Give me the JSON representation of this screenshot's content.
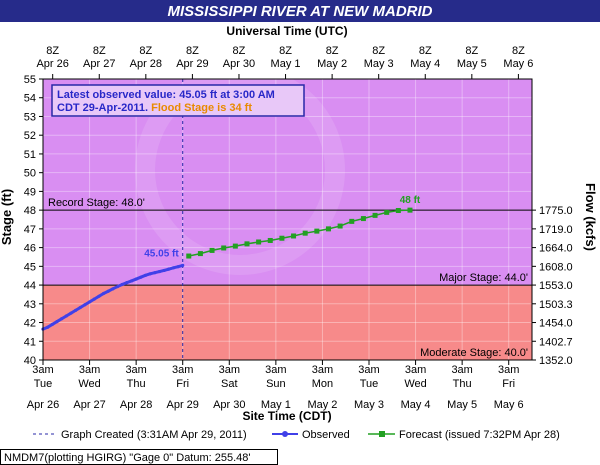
{
  "chart_data": {
    "type": "line",
    "title": "MISSISSIPPI RIVER AT NEW MADRID",
    "top_axis_title": "Universal Time (UTC)",
    "bottom_axis_title": "Site Time (CDT)",
    "ylabel": "Stage (ft)",
    "y2label": "Flow (kcfs)",
    "ylim": [
      40,
      55
    ],
    "yticks": [
      40,
      41,
      42,
      43,
      44,
      45,
      46,
      47,
      48,
      49,
      50,
      51,
      52,
      53,
      54,
      55
    ],
    "y2ticks": [
      {
        "stage": 40,
        "label": "1352.0"
      },
      {
        "stage": 41,
        "label": "1402.7"
      },
      {
        "stage": 42,
        "label": "1454.0"
      },
      {
        "stage": 43,
        "label": "1503.3"
      },
      {
        "stage": 44,
        "label": "1553.0"
      },
      {
        "stage": 45,
        "label": "1608.0"
      },
      {
        "stage": 46,
        "label": "1664.0"
      },
      {
        "stage": 47,
        "label": "1719.0"
      },
      {
        "stage": 48,
        "label": "1775.0"
      }
    ],
    "x_day_range": [
      0,
      10.5
    ],
    "top_ticks": [
      {
        "day": 0.208,
        "line1": "8Z",
        "line2": "Apr 26"
      },
      {
        "day": 1.208,
        "line1": "8Z",
        "line2": "Apr 27"
      },
      {
        "day": 2.208,
        "line1": "8Z",
        "line2": "Apr 28"
      },
      {
        "day": 3.208,
        "line1": "8Z",
        "line2": "Apr 29"
      },
      {
        "day": 4.208,
        "line1": "8Z",
        "line2": "Apr 30"
      },
      {
        "day": 5.208,
        "line1": "8Z",
        "line2": "May 1"
      },
      {
        "day": 6.208,
        "line1": "8Z",
        "line2": "May 2"
      },
      {
        "day": 7.208,
        "line1": "8Z",
        "line2": "May 3"
      },
      {
        "day": 8.208,
        "line1": "8Z",
        "line2": "May 4"
      },
      {
        "day": 9.208,
        "line1": "8Z",
        "line2": "May 5"
      },
      {
        "day": 10.208,
        "line1": "8Z",
        "line2": "May 6"
      }
    ],
    "bottom_ticks": [
      {
        "day": 0,
        "line1": "3am",
        "line2": "Tue",
        "line3": "Apr 26"
      },
      {
        "day": 1,
        "line1": "3am",
        "line2": "Wed",
        "line3": "Apr 27"
      },
      {
        "day": 2,
        "line1": "3am",
        "line2": "Thu",
        "line3": "Apr 28"
      },
      {
        "day": 3,
        "line1": "3am",
        "line2": "Fri",
        "line3": "Apr 29"
      },
      {
        "day": 4,
        "line1": "3am",
        "line2": "Sat",
        "line3": "Apr 30"
      },
      {
        "day": 5,
        "line1": "3am",
        "line2": "Sun",
        "line3": "May 1"
      },
      {
        "day": 6,
        "line1": "3am",
        "line2": "Mon",
        "line3": "May 2"
      },
      {
        "day": 7,
        "line1": "3am",
        "line2": "Tue",
        "line3": "May 3"
      },
      {
        "day": 8,
        "line1": "3am",
        "line2": "Wed",
        "line3": "May 4"
      },
      {
        "day": 9,
        "line1": "3am",
        "line2": "Thu",
        "line3": "May 5"
      },
      {
        "day": 10,
        "line1": "3am",
        "line2": "Fri",
        "line3": "May 6"
      }
    ],
    "zones": [
      {
        "from": 40,
        "to": 44,
        "color": "#f78a8a"
      },
      {
        "from": 44,
        "to": 55,
        "color": "#d98ef2"
      }
    ],
    "stage_lines": [
      {
        "value": 48,
        "label": "Record Stage: 48.0'",
        "side": "left"
      },
      {
        "value": 44,
        "label": "Major Stage: 44.0'",
        "side": "right"
      },
      {
        "value": 40,
        "label": "Moderate Stage: 40.0'",
        "side": "right"
      }
    ],
    "observed": {
      "name": "Observed",
      "color": "#4040e8",
      "points": [
        [
          0.0,
          41.65
        ],
        [
          0.1,
          41.75
        ],
        [
          0.2,
          41.9
        ],
        [
          0.3,
          42.05
        ],
        [
          0.4,
          42.2
        ],
        [
          0.5,
          42.35
        ],
        [
          0.6,
          42.5
        ],
        [
          0.7,
          42.65
        ],
        [
          0.8,
          42.8
        ],
        [
          0.9,
          42.95
        ],
        [
          1.0,
          43.1
        ],
        [
          1.1,
          43.25
        ],
        [
          1.2,
          43.4
        ],
        [
          1.3,
          43.55
        ],
        [
          1.4,
          43.67
        ],
        [
          1.5,
          43.8
        ],
        [
          1.6,
          43.92
        ],
        [
          1.7,
          44.03
        ],
        [
          1.8,
          44.13
        ],
        [
          1.9,
          44.22
        ],
        [
          2.0,
          44.32
        ],
        [
          2.1,
          44.42
        ],
        [
          2.2,
          44.52
        ],
        [
          2.3,
          44.6
        ],
        [
          2.4,
          44.66
        ],
        [
          2.5,
          44.72
        ],
        [
          2.6,
          44.78
        ],
        [
          2.7,
          44.85
        ],
        [
          2.8,
          44.92
        ],
        [
          2.9,
          44.98
        ],
        [
          3.0,
          45.05
        ]
      ],
      "label": "45.05 ft"
    },
    "forecast": {
      "name": "Forecast (issued 7:32PM Apr 28)",
      "color": "#22a022",
      "points": [
        [
          3.13,
          45.55
        ],
        [
          3.38,
          45.68
        ],
        [
          3.63,
          45.85
        ],
        [
          3.88,
          45.98
        ],
        [
          4.13,
          46.08
        ],
        [
          4.38,
          46.2
        ],
        [
          4.63,
          46.3
        ],
        [
          4.88,
          46.38
        ],
        [
          5.13,
          46.5
        ],
        [
          5.38,
          46.62
        ],
        [
          5.63,
          46.77
        ],
        [
          5.88,
          46.88
        ],
        [
          6.13,
          47.0
        ],
        [
          6.38,
          47.15
        ],
        [
          6.63,
          47.4
        ],
        [
          6.88,
          47.55
        ],
        [
          7.13,
          47.72
        ],
        [
          7.38,
          47.88
        ],
        [
          7.63,
          47.98
        ],
        [
          7.88,
          48.0
        ]
      ],
      "label": "48 ft"
    },
    "latest": {
      "line1": "Latest observed value: 45.05 ft at 3:00 AM",
      "line2_main": "CDT 29-Apr-2011.",
      "line2_flood": "Flood Stage is 34 ft"
    },
    "created_marker_day": 3.0,
    "legend": {
      "created": "Graph Created (3:31AM Apr 29, 2011)",
      "observed": "Observed",
      "forecast": "Forecast (issued 7:32PM Apr 28)"
    },
    "footer": "NMDM7(plotting HGIRG) \"Gage 0\" Datum: 255.48'"
  }
}
